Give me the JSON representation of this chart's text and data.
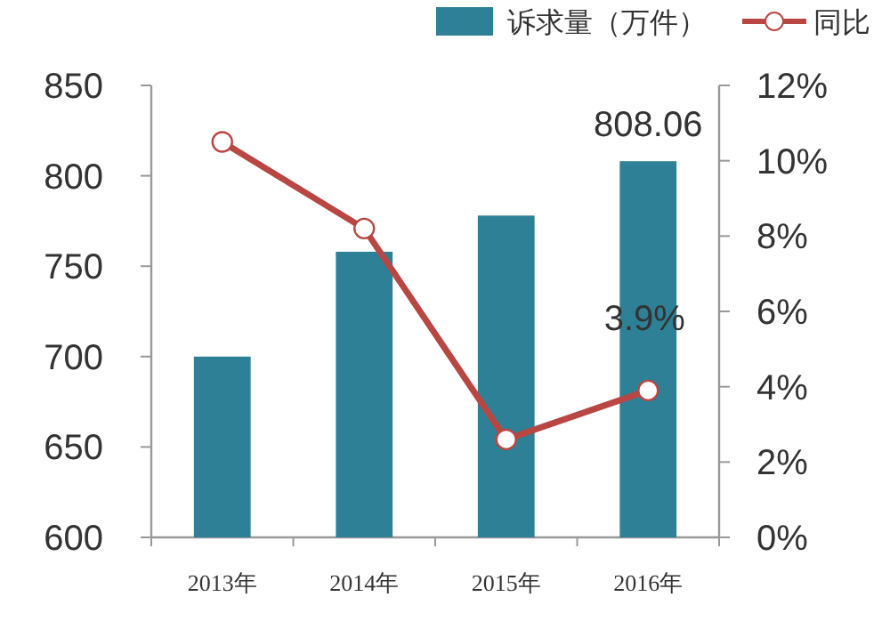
{
  "chart_data": {
    "type": "bar",
    "categories": [
      "2013年",
      "2014年",
      "2015年",
      "2016年"
    ],
    "series": [
      {
        "name": "诉求量（万件）",
        "color": "#2e8096",
        "values": [
          700,
          758,
          778,
          808.06
        ],
        "value_labels": [
          null,
          null,
          null,
          "808.06"
        ]
      },
      {
        "name": "同比",
        "type": "line",
        "axis": "y2",
        "color": "#b84744",
        "marker": "circle",
        "values": [
          10.5,
          8.2,
          2.6,
          3.9
        ],
        "value_labels": [
          null,
          null,
          null,
          "3.9%"
        ]
      }
    ],
    "ylim": [
      600,
      850
    ],
    "yticks": [
      600,
      650,
      700,
      750,
      800,
      850
    ],
    "y2lim": [
      0,
      12
    ],
    "y2ticks": [
      {
        "value": 0,
        "label": "0%"
      },
      {
        "value": 2,
        "label": "2%"
      },
      {
        "value": 4,
        "label": "4%"
      },
      {
        "value": 6,
        "label": "6%"
      },
      {
        "value": 8,
        "label": "8%"
      },
      {
        "value": 10,
        "label": "10%"
      },
      {
        "value": 12,
        "label": "12%"
      }
    ],
    "legend": "top",
    "grid": false
  }
}
